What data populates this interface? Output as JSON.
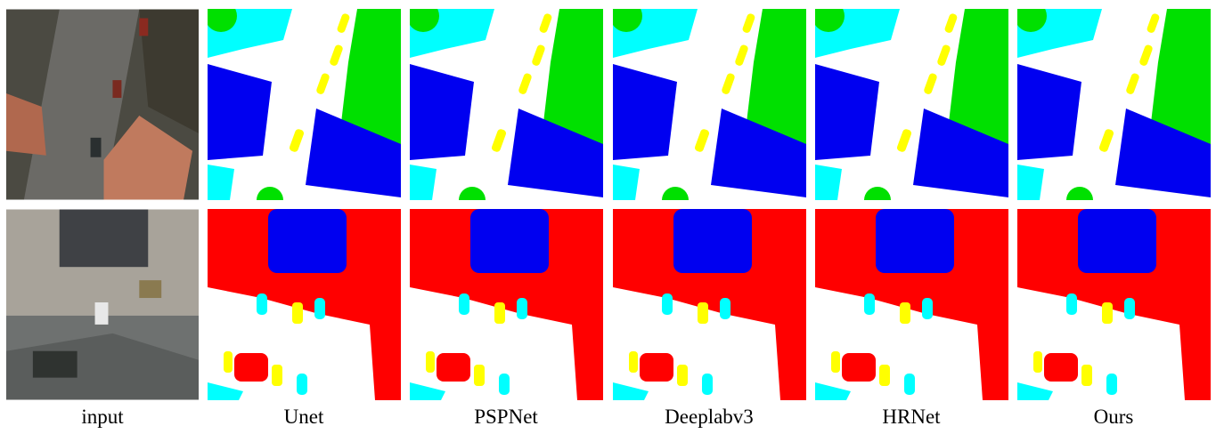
{
  "labels": [
    "input",
    "Unet",
    "PSPNet",
    "Deeplabv3",
    "HRNet",
    "Ours"
  ]
}
